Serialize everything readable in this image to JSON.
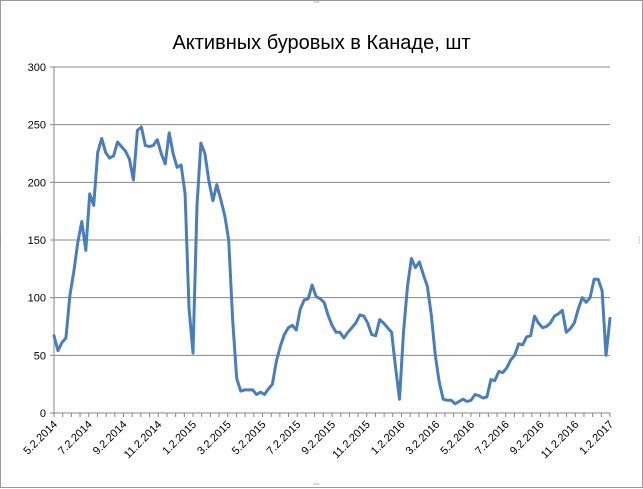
{
  "chart_data": {
    "type": "line",
    "title": "Активных буровых в Канаде, шт",
    "xlabel": "",
    "ylabel": "",
    "ylim": [
      0,
      300
    ],
    "yticks": [
      "0",
      "50",
      "100",
      "150",
      "200",
      "250",
      "300"
    ],
    "xticks": [
      "5.2.2014",
      "7.2.2014",
      "9.2.2014",
      "11.2.2014",
      "1.2.2015",
      "3.2.2015",
      "5.2.2015",
      "7.2.2015",
      "9.2.2015",
      "11.2.2015",
      "1.2.2016",
      "3.2.2016",
      "5.2.2016",
      "7.2.2016",
      "9.2.2016",
      "11.2.2016",
      "1.2.2017"
    ],
    "grid": true,
    "legend": "none",
    "series": [
      {
        "color": "#4a7ebb",
        "values": [
          67,
          54,
          61,
          65,
          102,
          123,
          148,
          166,
          141,
          190,
          180,
          226,
          238,
          226,
          221,
          223,
          235,
          231,
          227,
          220,
          202,
          245,
          248,
          232,
          231,
          232,
          237,
          225,
          216,
          243,
          225,
          213,
          215,
          190,
          91,
          52,
          180,
          234,
          225,
          201,
          184,
          198,
          185,
          171,
          150,
          80,
          30,
          19,
          20,
          20,
          20,
          16,
          18,
          16,
          21,
          25,
          45,
          58,
          68,
          74,
          76,
          72,
          90,
          98,
          99,
          111,
          101,
          99,
          96,
          85,
          76,
          70,
          70,
          65,
          70,
          74,
          78,
          85,
          84,
          78,
          68,
          67,
          81,
          78,
          74,
          70,
          40,
          12,
          70,
          110,
          134,
          126,
          131,
          120,
          110,
          85,
          50,
          27,
          12,
          11,
          11,
          8,
          10,
          12,
          10,
          11,
          16,
          15,
          13,
          14,
          29,
          28,
          36,
          35,
          39,
          46,
          50,
          60,
          59,
          66,
          67,
          84,
          78,
          74,
          75,
          78,
          84,
          86,
          89,
          70,
          73,
          78,
          90,
          100,
          96,
          100,
          116,
          116,
          106,
          50,
          82
        ]
      }
    ]
  }
}
